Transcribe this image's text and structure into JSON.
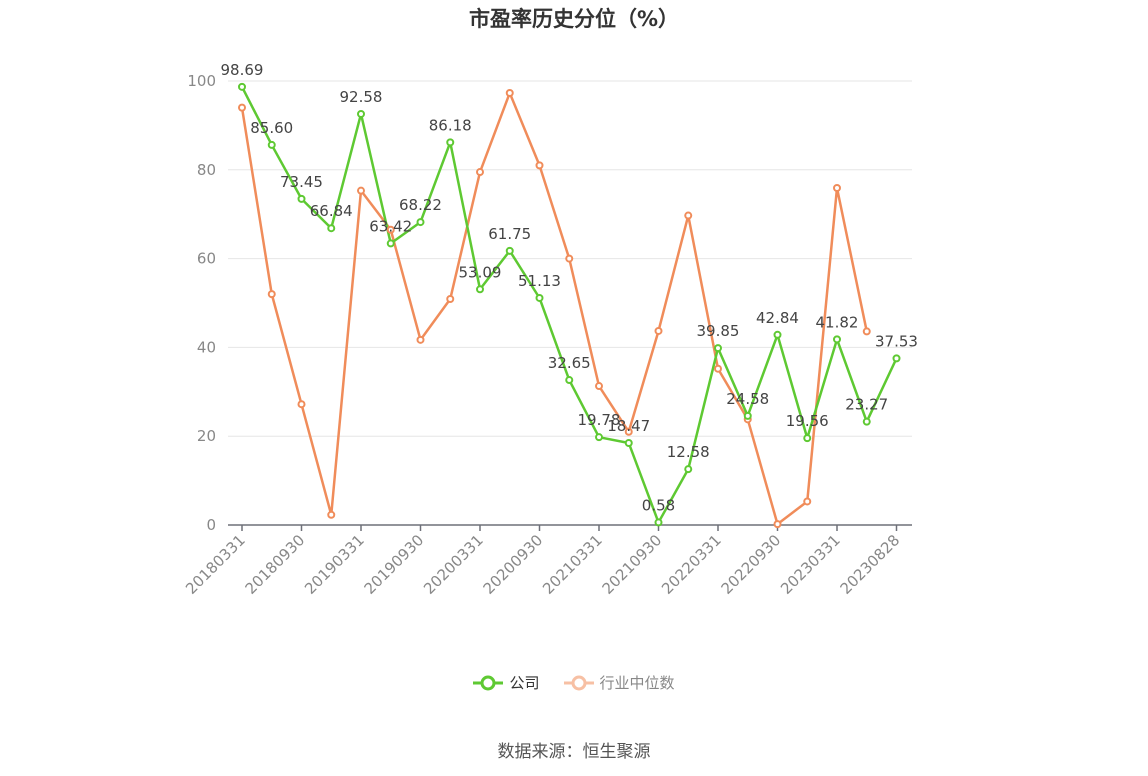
{
  "chart_data": {
    "type": "line",
    "title": "市盈率历史分位（%）",
    "source": "数据来源：恒生聚源",
    "ylim": [
      0,
      100
    ],
    "yticks": [
      "0",
      "20",
      "40",
      "60",
      "80",
      "100"
    ],
    "xtick_labels": [
      "20180331",
      "20180930",
      "20190331",
      "20190930",
      "20200331",
      "20200930",
      "20210331",
      "20210930",
      "20220331",
      "20220930",
      "20230331",
      "20230828"
    ],
    "x": [
      "20180331",
      "20180630",
      "20180930",
      "20181231",
      "20190331",
      "20190630",
      "20190930",
      "20191231",
      "20200331",
      "20200630",
      "20200930",
      "20201231",
      "20210331",
      "20210630",
      "20210930",
      "20211231",
      "20220331",
      "20220630",
      "20220930",
      "20221231",
      "20230331",
      "20230630",
      "20230828"
    ],
    "series": [
      {
        "name": "公司",
        "color": "#5ec932",
        "values": [
          98.69,
          85.6,
          73.45,
          66.84,
          92.58,
          63.42,
          68.22,
          86.18,
          53.09,
          61.75,
          51.13,
          32.65,
          19.78,
          18.47,
          0.58,
          12.58,
          39.85,
          24.58,
          42.84,
          19.56,
          41.82,
          23.27,
          37.53
        ],
        "labels": [
          "98.69",
          "85.60",
          "73.45",
          "66.84",
          "92.58",
          "63.42",
          "68.22",
          "86.18",
          "53.09",
          "61.75",
          "51.13",
          "32.65",
          "19.78",
          "18.47",
          "0.58",
          "12.58",
          "39.85",
          "24.58",
          "42.84",
          "19.56",
          "41.82",
          "23.27",
          "37.53"
        ]
      },
      {
        "name": "行业中位数",
        "color": "#f08c5a",
        "values": [
          94,
          52,
          27.2,
          2.3,
          75.3,
          66.5,
          41.7,
          50.9,
          79.5,
          97.3,
          81,
          60,
          31.3,
          21,
          43.7,
          69.7,
          35.2,
          23.8,
          0.2,
          5.3,
          75.9,
          43.6,
          null
        ]
      }
    ],
    "legend_position": "bottom",
    "grid": true
  }
}
